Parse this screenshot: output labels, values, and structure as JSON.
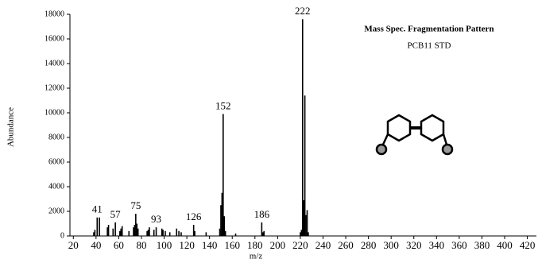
{
  "chart_data": {
    "type": "stick",
    "title": "Mass Spec. Fragmentation Pattern",
    "subtitle": "PCB11 STD",
    "x_label": "m/z",
    "y_label": "Abundance",
    "color": "#000000",
    "x": [
      38,
      39,
      41,
      43,
      50,
      51,
      55,
      57,
      61,
      62,
      63,
      69,
      73,
      74,
      75,
      76,
      77,
      85,
      86,
      87,
      91,
      93,
      98,
      99,
      101,
      105,
      111,
      113,
      115,
      126,
      127,
      137,
      149,
      150,
      151,
      152,
      153,
      154,
      163,
      186,
      187,
      188,
      220,
      221,
      222,
      223,
      224,
      225,
      226,
      227
    ],
    "values": [
      300,
      500,
      1500,
      1500,
      700,
      900,
      600,
      1100,
      400,
      600,
      800,
      400,
      700,
      900,
      1800,
      1000,
      600,
      400,
      500,
      700,
      500,
      700,
      600,
      500,
      400,
      300,
      600,
      400,
      300,
      900,
      400,
      300,
      600,
      2500,
      3500,
      9900,
      1600,
      400,
      200,
      1100,
      300,
      400,
      300,
      500,
      17600,
      2900,
      11400,
      1700,
      2100,
      300
    ],
    "annotations": [
      "41",
      "57",
      "75",
      "93",
      "126",
      "152",
      "186",
      "222"
    ],
    "xlim": [
      17,
      428
    ],
    "ylim": [
      0,
      18000
    ],
    "xticks": [
      20,
      40,
      60,
      80,
      100,
      120,
      140,
      160,
      180,
      200,
      220,
      240,
      260,
      280,
      300,
      320,
      340,
      360,
      380,
      400,
      420
    ],
    "yticks": [
      0,
      2000,
      4000,
      6000,
      8000,
      10000,
      12000,
      14000,
      16000,
      18000
    ]
  }
}
